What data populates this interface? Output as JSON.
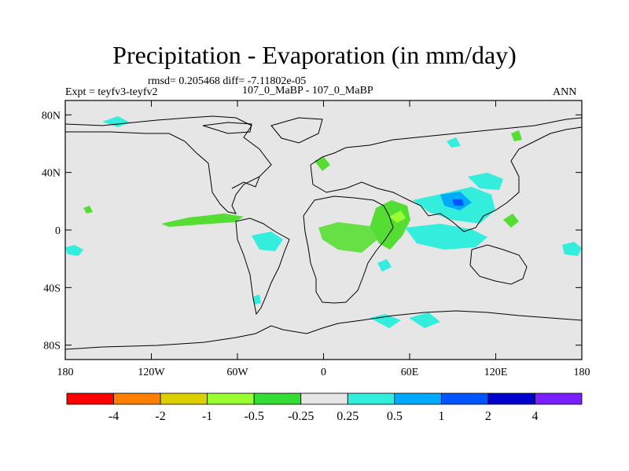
{
  "title": "Precipitation - Evaporation (in mm/day)",
  "stats": "rmsd= 0.205468 diff= -7.11802e-05",
  "left_label": "Expt = teyfv3-teyfv2",
  "center_label": "107_0_MaBP - 107_0_MaBP",
  "right_label": "ANN",
  "map": {
    "lon_range": [
      -180,
      180
    ],
    "lat_range": [
      -90,
      90
    ],
    "lat_ticks": [
      {
        "value": 80,
        "label": "80N"
      },
      {
        "value": 40,
        "label": "40N"
      },
      {
        "value": 0,
        "label": "0"
      },
      {
        "value": -40,
        "label": "40S"
      },
      {
        "value": -80,
        "label": "80S"
      }
    ],
    "lon_ticks": [
      {
        "value": -180,
        "label": "180"
      },
      {
        "value": -120,
        "label": "120W"
      },
      {
        "value": -60,
        "label": "60W"
      },
      {
        "value": 0,
        "label": "0"
      },
      {
        "value": 60,
        "label": "60E"
      },
      {
        "value": 120,
        "label": "120E"
      },
      {
        "value": 180,
        "label": "180"
      }
    ],
    "background_color": "#e6e6e6"
  },
  "colorbar": {
    "colors": [
      "#ff0000",
      "#ff7f00",
      "#ddd000",
      "#99ff33",
      "#33dd33",
      "#e6e6e6",
      "#33eedd",
      "#00aaff",
      "#0055ff",
      "#0000cc",
      "#7a1fff"
    ],
    "labels": [
      "-4",
      "-2",
      "-1",
      "-0.5",
      "-0.25",
      "0.25",
      "0.5",
      "1",
      "2",
      "4"
    ]
  }
}
